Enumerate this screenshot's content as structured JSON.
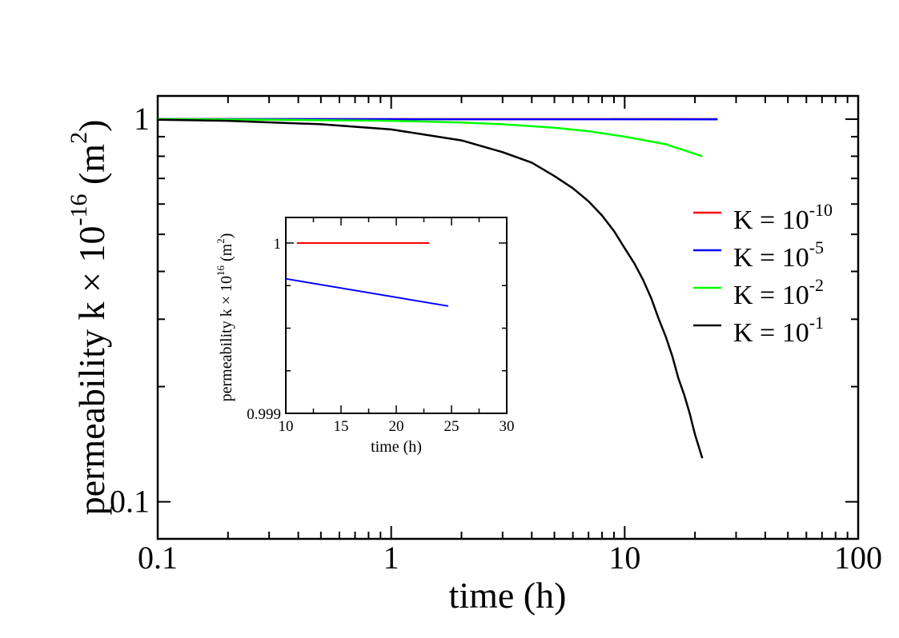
{
  "chart_data": {
    "type": "line",
    "main": {
      "xlabel": "time (h)",
      "ylabel": {
        "base": "permeability k × 10",
        "exponent": "-16",
        "unit_open": " (m",
        "unit_exp": "2",
        "unit_close": ")"
      },
      "xscale": "log",
      "yscale": "log",
      "xlim": [
        0.1,
        100
      ],
      "ylim": [
        0.08,
        1.15
      ],
      "x_tick_labels": [
        {
          "value": 0.1,
          "label": "0.1"
        },
        {
          "value": 1,
          "label": "1"
        },
        {
          "value": 10,
          "label": "10"
        },
        {
          "value": 100,
          "label": "100"
        }
      ],
      "y_tick_labels": [
        {
          "value": 1,
          "label": "1"
        },
        {
          "value": 0.1,
          "label": "0.1"
        }
      ],
      "legend_position": "right",
      "series": [
        {
          "name": "K = 10^-10",
          "label_base": "K = 10",
          "label_exp": "-10",
          "color": "#ff0000",
          "x": [
            0.1,
            25
          ],
          "y": [
            1.0,
            1.0
          ]
        },
        {
          "name": "K = 10^-5",
          "label_base": "K = 10",
          "label_exp": "-5",
          "color": "#0000ff",
          "x": [
            0.1,
            25
          ],
          "y": [
            1.0,
            0.9995
          ]
        },
        {
          "name": "K = 10^-2",
          "label_base": "K = 10",
          "label_exp": "-2",
          "color": "#00ff00",
          "x": [
            0.1,
            0.3,
            1,
            2,
            3,
            5,
            7,
            10,
            15,
            21.5
          ],
          "y": [
            1.0,
            0.997,
            0.99,
            0.98,
            0.97,
            0.95,
            0.93,
            0.9,
            0.86,
            0.8
          ]
        },
        {
          "name": "K = 10^-1",
          "label_base": "K = 10",
          "label_exp": "-1",
          "color": "#000000",
          "x": [
            0.1,
            0.2,
            0.5,
            1,
            2,
            3,
            4,
            5,
            6,
            7,
            8,
            9,
            10,
            11,
            12,
            13,
            14,
            15,
            16,
            17,
            18,
            19,
            20,
            21.5
          ],
          "y": [
            0.997,
            0.99,
            0.97,
            0.94,
            0.88,
            0.82,
            0.77,
            0.71,
            0.66,
            0.61,
            0.56,
            0.51,
            0.46,
            0.42,
            0.38,
            0.34,
            0.3,
            0.27,
            0.24,
            0.21,
            0.19,
            0.17,
            0.15,
            0.13
          ]
        }
      ]
    },
    "inset": {
      "xlabel": "time (h)",
      "ylabel": {
        "base": "permeability k × 10",
        "exponent": "16",
        "unit_open": " (m",
        "unit_exp": "2",
        "unit_close": ")"
      },
      "xlim": [
        10,
        30
      ],
      "ylim": [
        0.999,
        1.00015
      ],
      "x_tick_labels": [
        "10",
        "15",
        "20",
        "25",
        "30"
      ],
      "y_tick_labels": [
        {
          "value": 1,
          "label": "1"
        },
        {
          "value": 0.999,
          "label": "0.999"
        }
      ],
      "series": [
        {
          "name": "K = 10^-10",
          "color": "#ff0000",
          "x": [
            11,
            23
          ],
          "y": [
            1.0,
            1.0
          ]
        },
        {
          "name": "K = 10^-5",
          "color": "#0000ff",
          "x": [
            10,
            24.7
          ],
          "y": [
            0.99979,
            0.99963
          ]
        }
      ]
    }
  }
}
